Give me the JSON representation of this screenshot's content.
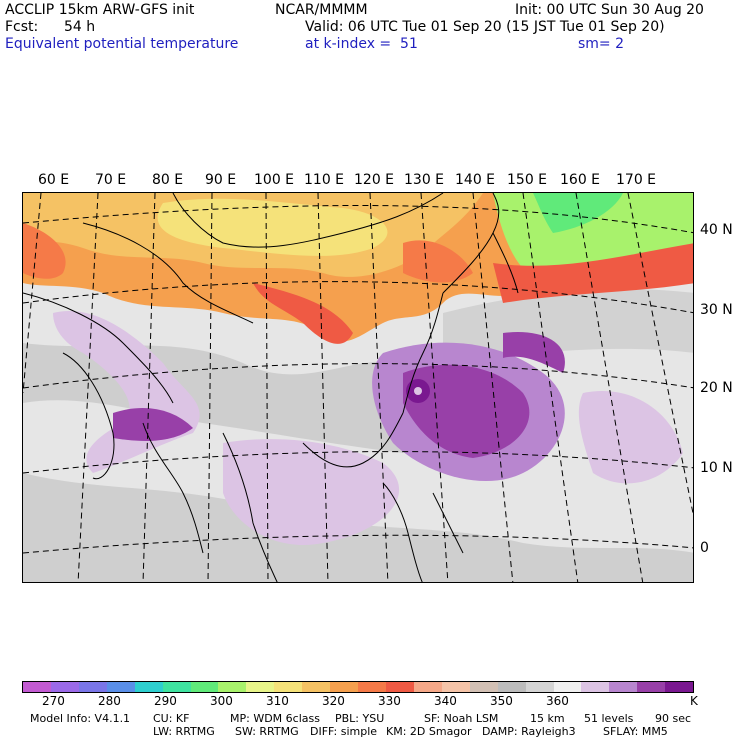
{
  "header": {
    "model_title": "ACCLIP 15km ARW-GFS init",
    "center": "NCAR/MMMM",
    "init": "Init: 00 UTC Sun 30 Aug 20",
    "fcst_label": "Fcst:",
    "fcst_value": "54 h",
    "valid": "Valid: 06 UTC Tue 01 Sep 20 (15 JST Tue 01 Sep 20)",
    "field": "Equivalent potential temperature",
    "level": "at k-index =  51",
    "smooth": "sm= 2"
  },
  "map": {
    "lon_labels": [
      "60 E",
      "70 E",
      "80 E",
      "90 E",
      "100 E",
      "110 E",
      "120 E",
      "130 E",
      "140 E",
      "150 E",
      "160 E",
      "170 E"
    ],
    "lat_labels": [
      "40 N",
      "30 N",
      "20 N",
      "10 N",
      "0"
    ]
  },
  "colorbar": {
    "colors": [
      "#c35bd2",
      "#9b6ae8",
      "#7a76e8",
      "#5a8fe8",
      "#2ecfcf",
      "#3fe3a0",
      "#60ea7a",
      "#a8f26c",
      "#e8f58a",
      "#f5e27a",
      "#f5c264",
      "#f5a04e",
      "#f57a48",
      "#ef5a44",
      "#f5a888",
      "#f5c4a8",
      "#d2c0b4",
      "#bcbcbc",
      "#d4d4d4",
      "#f0f0f0",
      "#dcc4e4",
      "#b886cf",
      "#9840a8",
      "#7a1890"
    ],
    "tick_labels": [
      "270",
      "280",
      "290",
      "300",
      "310",
      "320",
      "330",
      "340",
      "350",
      "360"
    ],
    "unit": "K"
  },
  "footer": {
    "line1": [
      "Model Info: V4.1.1",
      "CU: KF",
      "MP: WDM 6class",
      "PBL: YSU",
      "SF: Noah LSM",
      "15 km",
      "51 levels",
      "90 sec"
    ],
    "line2": [
      "LW: RRTMG",
      "SW: RRTMG",
      "DIFF: simple",
      "KM: 2D Smagor",
      "DAMP: Rayleigh3",
      "SFLAY: MM5"
    ]
  }
}
